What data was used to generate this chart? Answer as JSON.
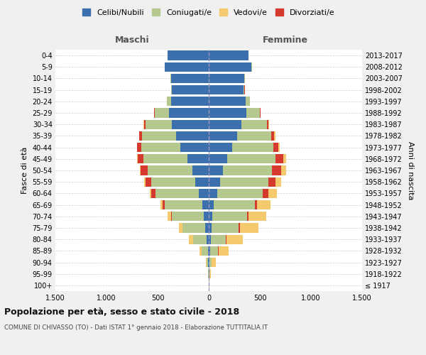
{
  "age_groups": [
    "100+",
    "95-99",
    "90-94",
    "85-89",
    "80-84",
    "75-79",
    "70-74",
    "65-69",
    "60-64",
    "55-59",
    "50-54",
    "45-49",
    "40-44",
    "35-39",
    "30-34",
    "25-29",
    "20-24",
    "15-19",
    "10-14",
    "5-9",
    "0-4"
  ],
  "birth_years": [
    "≤ 1917",
    "1918-1922",
    "1923-1927",
    "1928-1932",
    "1933-1937",
    "1938-1942",
    "1943-1947",
    "1948-1952",
    "1953-1957",
    "1958-1962",
    "1963-1967",
    "1968-1972",
    "1973-1977",
    "1978-1982",
    "1983-1987",
    "1988-1992",
    "1993-1997",
    "1998-2002",
    "2003-2007",
    "2008-2012",
    "2013-2017"
  ],
  "male": {
    "celibe": [
      2,
      3,
      5,
      10,
      20,
      35,
      50,
      60,
      100,
      130,
      160,
      210,
      280,
      320,
      360,
      390,
      370,
      360,
      370,
      430,
      400
    ],
    "coniugato": [
      1,
      3,
      15,
      60,
      130,
      220,
      310,
      370,
      420,
      430,
      440,
      430,
      380,
      330,
      260,
      140,
      40,
      10,
      5,
      3,
      2
    ],
    "vedovo": [
      0,
      1,
      5,
      20,
      40,
      30,
      30,
      20,
      15,
      10,
      8,
      5,
      3,
      2,
      1,
      0,
      0,
      0,
      0,
      0,
      0
    ],
    "divorziato": [
      0,
      0,
      1,
      2,
      3,
      5,
      10,
      20,
      40,
      60,
      65,
      55,
      40,
      30,
      15,
      5,
      2,
      1,
      0,
      0,
      0
    ]
  },
  "female": {
    "nubile": [
      2,
      4,
      8,
      12,
      18,
      25,
      35,
      50,
      80,
      110,
      140,
      180,
      230,
      280,
      320,
      370,
      360,
      340,
      350,
      420,
      390
    ],
    "coniugata": [
      2,
      5,
      20,
      80,
      150,
      270,
      340,
      400,
      450,
      470,
      480,
      470,
      400,
      330,
      250,
      130,
      40,
      10,
      5,
      3,
      2
    ],
    "vedova": [
      2,
      10,
      40,
      100,
      160,
      180,
      170,
      130,
      90,
      60,
      45,
      25,
      15,
      10,
      5,
      2,
      1,
      0,
      0,
      0,
      0
    ],
    "divorziata": [
      0,
      0,
      1,
      2,
      5,
      8,
      15,
      25,
      50,
      70,
      90,
      80,
      50,
      30,
      15,
      5,
      2,
      1,
      0,
      0,
      0
    ]
  },
  "colors": {
    "celibe_nubile": "#3c6fad",
    "coniugato": "#b5c98e",
    "vedovo": "#f5c96e",
    "divorziato": "#d63a2e"
  },
  "xlim": 1500,
  "xticklabels": [
    "1.500",
    "1.000",
    "500",
    "0",
    "500",
    "1.000",
    "1.500"
  ],
  "title": "Popolazione per età, sesso e stato civile - 2018",
  "subtitle": "COMUNE DI CHIVASSO (TO) - Dati ISTAT 1° gennaio 2018 - Elaborazione TUTTITALIA.IT",
  "ylabel_left": "Fasce di età",
  "ylabel_right": "Anni di nascita",
  "label_maschi": "Maschi",
  "label_femmine": "Femmine",
  "legend_labels": [
    "Celibi/Nubili",
    "Coniugati/e",
    "Vedovi/e",
    "Divorziati/e"
  ],
  "bg_color": "#f0f0f0",
  "plot_bg_color": "#ffffff"
}
